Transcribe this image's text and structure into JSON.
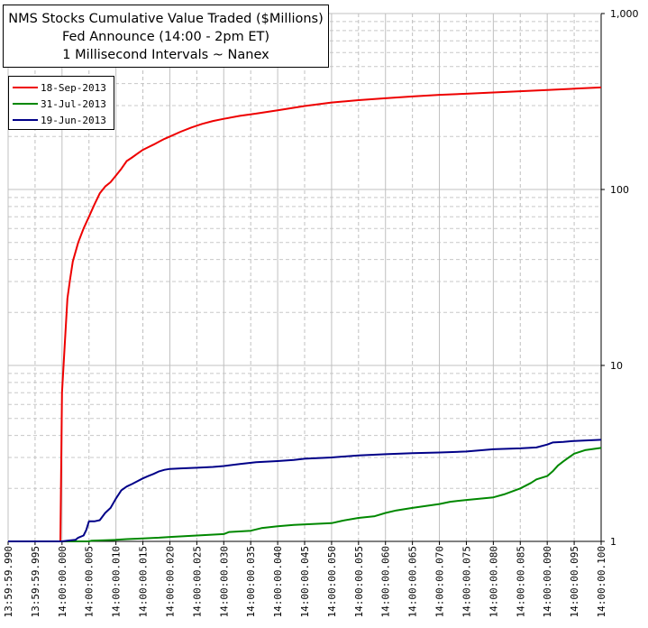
{
  "chart_data": {
    "type": "line",
    "title": [
      "NMS Stocks Cumulative Value Traded ($Millions)",
      "Fed Announce (14:00 - 2pm ET)",
      "1 Millisecond Intervals ~ Nanex"
    ],
    "y_scale": "log",
    "ylim": [
      1,
      1000
    ],
    "y_tick_labels": [
      "1",
      "10",
      "100",
      "1,000"
    ],
    "y_tick_values": [
      1,
      10,
      100,
      1000
    ],
    "x_tick_labels": [
      "13:59:59.990",
      "13:59:59.995",
      "14:00:00.000",
      "14:00:00.005",
      "14:00:00.010",
      "14:00:00.015",
      "14:00:00.020",
      "14:00:00.025",
      "14:00:00.030",
      "14:00:00.035",
      "14:00:00.040",
      "14:00:00.045",
      "14:00:00.050",
      "14:00:00.055",
      "14:00:00.060",
      "14:00:00.065",
      "14:00:00.070",
      "14:00:00.075",
      "14:00:00.080",
      "14:00:00.085",
      "14:00:00.090",
      "14:00:00.095",
      "14:00:00.100"
    ],
    "x_unit_note": "x values are milliseconds relative to 14:00:00.000",
    "legend_position": "top-left",
    "grid": true,
    "series": [
      {
        "name": "18-Sep-2013",
        "color": "#ee0000",
        "points": [
          [
            -10,
            1
          ],
          [
            -0.3,
            1
          ],
          [
            0,
            7
          ],
          [
            0.5,
            13
          ],
          [
            1,
            24
          ],
          [
            1.5,
            31
          ],
          [
            2,
            39
          ],
          [
            3,
            50
          ],
          [
            4,
            60
          ],
          [
            5,
            70
          ],
          [
            6,
            82
          ],
          [
            7,
            95
          ],
          [
            8,
            104
          ],
          [
            9,
            110
          ],
          [
            10,
            120
          ],
          [
            11,
            131
          ],
          [
            12,
            145
          ],
          [
            13,
            152
          ],
          [
            14,
            160
          ],
          [
            15,
            168
          ],
          [
            16,
            174
          ],
          [
            17,
            180
          ],
          [
            18,
            187
          ],
          [
            19,
            194
          ],
          [
            20,
            200
          ],
          [
            22,
            213
          ],
          [
            24,
            225
          ],
          [
            26,
            236
          ],
          [
            28,
            245
          ],
          [
            30,
            252
          ],
          [
            33,
            262
          ],
          [
            36,
            270
          ],
          [
            40,
            282
          ],
          [
            45,
            298
          ],
          [
            50,
            312
          ],
          [
            55,
            322
          ],
          [
            60,
            330
          ],
          [
            65,
            338
          ],
          [
            70,
            345
          ],
          [
            75,
            350
          ],
          [
            80,
            356
          ],
          [
            85,
            362
          ],
          [
            90,
            368
          ],
          [
            95,
            374
          ],
          [
            100,
            380
          ]
        ]
      },
      {
        "name": "31-Jul-2013",
        "color": "#008800",
        "points": [
          [
            -10,
            1
          ],
          [
            5,
            1
          ],
          [
            5.5,
            1.01
          ],
          [
            10,
            1.02
          ],
          [
            12,
            1.03
          ],
          [
            15,
            1.04
          ],
          [
            18,
            1.05
          ],
          [
            20,
            1.06
          ],
          [
            25,
            1.08
          ],
          [
            30,
            1.1
          ],
          [
            31,
            1.13
          ],
          [
            35,
            1.15
          ],
          [
            37,
            1.19
          ],
          [
            40,
            1.22
          ],
          [
            43,
            1.24
          ],
          [
            50,
            1.27
          ],
          [
            52,
            1.31
          ],
          [
            55,
            1.36
          ],
          [
            58,
            1.39
          ],
          [
            60,
            1.45
          ],
          [
            62,
            1.5
          ],
          [
            65,
            1.55
          ],
          [
            70,
            1.63
          ],
          [
            72,
            1.68
          ],
          [
            75,
            1.72
          ],
          [
            80,
            1.78
          ],
          [
            82,
            1.85
          ],
          [
            85,
            2.0
          ],
          [
            87,
            2.15
          ],
          [
            88,
            2.25
          ],
          [
            90,
            2.35
          ],
          [
            91,
            2.5
          ],
          [
            92,
            2.7
          ],
          [
            93,
            2.85
          ],
          [
            94,
            3.0
          ],
          [
            95,
            3.15
          ],
          [
            97,
            3.3
          ],
          [
            100,
            3.4
          ]
        ]
      },
      {
        "name": "19-Jun-2013",
        "color": "#000088",
        "points": [
          [
            -10,
            1
          ],
          [
            0,
            1
          ],
          [
            1,
            1.01
          ],
          [
            2.5,
            1.02
          ],
          [
            3,
            1.05
          ],
          [
            4,
            1.08
          ],
          [
            4.5,
            1.16
          ],
          [
            5,
            1.3
          ],
          [
            6,
            1.3
          ],
          [
            7,
            1.32
          ],
          [
            8,
            1.45
          ],
          [
            9,
            1.55
          ],
          [
            10,
            1.75
          ],
          [
            11,
            1.95
          ],
          [
            12,
            2.05
          ],
          [
            13,
            2.12
          ],
          [
            14,
            2.2
          ],
          [
            15,
            2.28
          ],
          [
            16,
            2.35
          ],
          [
            17,
            2.42
          ],
          [
            18,
            2.5
          ],
          [
            19,
            2.55
          ],
          [
            20,
            2.58
          ],
          [
            22,
            2.6
          ],
          [
            25,
            2.62
          ],
          [
            28,
            2.65
          ],
          [
            30,
            2.68
          ],
          [
            33,
            2.75
          ],
          [
            36,
            2.82
          ],
          [
            40,
            2.86
          ],
          [
            43,
            2.9
          ],
          [
            45,
            2.95
          ],
          [
            50,
            3.0
          ],
          [
            55,
            3.08
          ],
          [
            60,
            3.13
          ],
          [
            65,
            3.17
          ],
          [
            70,
            3.2
          ],
          [
            75,
            3.24
          ],
          [
            78,
            3.3
          ],
          [
            80,
            3.34
          ],
          [
            85,
            3.38
          ],
          [
            88,
            3.42
          ],
          [
            90,
            3.55
          ],
          [
            91,
            3.65
          ],
          [
            93,
            3.68
          ],
          [
            95,
            3.72
          ],
          [
            100,
            3.78
          ]
        ]
      }
    ]
  }
}
